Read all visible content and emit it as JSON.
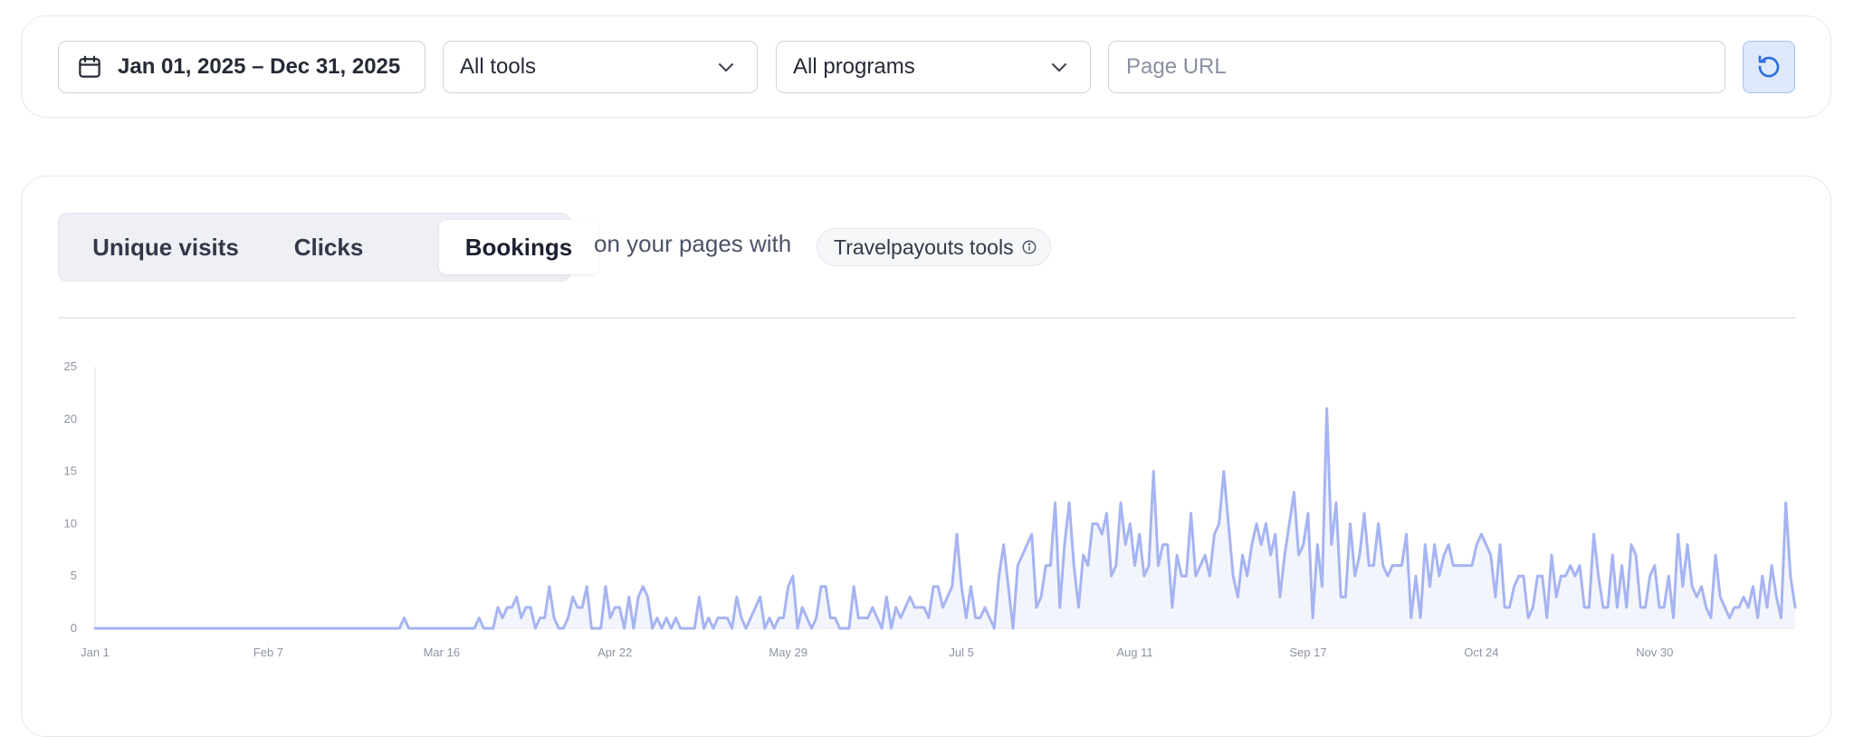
{
  "filters": {
    "date_range": "Jan 01, 2025 – Dec 31, 2025",
    "tools_select": "All tools",
    "programs_select": "All programs",
    "url_placeholder": "Page URL"
  },
  "metric_tabs": [
    "Unique visits",
    "Clicks",
    "Bookings"
  ],
  "selected_tab": "Bookings",
  "caption": "on your pages with",
  "tools_badge": "Travelpayouts tools",
  "colors": {
    "line": "#a6b4f2",
    "area": "#f3f5fc",
    "accent": "#2f6fe0"
  },
  "chart_data": {
    "type": "line",
    "x_start": "Jan 1",
    "xlabel": "",
    "ylabel": "",
    "ylim": [
      0,
      25
    ],
    "yticks": [
      0,
      5,
      10,
      15,
      20,
      25
    ],
    "xticks": [
      "Jan 1",
      "Feb 7",
      "Mar 16",
      "Apr 22",
      "May 29",
      "Jul 5",
      "Aug 11",
      "Sep 17",
      "Oct 24",
      "Nov 30"
    ],
    "xtick_days": [
      0,
      37,
      74,
      111,
      148,
      185,
      222,
      259,
      296,
      333
    ],
    "series": [
      {
        "name": "",
        "values": [
          0,
          0,
          0,
          0,
          0,
          0,
          0,
          0,
          0,
          0,
          0,
          0,
          0,
          0,
          0,
          0,
          0,
          0,
          0,
          0,
          0,
          0,
          0,
          0,
          0,
          0,
          0,
          0,
          0,
          0,
          0,
          0,
          0,
          0,
          0,
          0,
          0,
          0,
          0,
          0,
          0,
          0,
          0,
          0,
          0,
          0,
          0,
          0,
          0,
          0,
          0,
          0,
          0,
          0,
          0,
          0,
          0,
          0,
          0,
          0,
          0,
          0,
          0,
          0,
          0,
          0,
          1,
          0,
          0,
          0,
          0,
          0,
          0,
          0,
          0,
          0,
          0,
          0,
          0,
          0,
          0,
          0,
          1,
          0,
          0,
          0,
          2,
          1,
          2,
          2,
          3,
          1,
          2,
          2,
          0,
          1,
          1,
          4,
          1,
          0,
          0,
          1,
          3,
          2,
          2,
          4,
          0,
          0,
          0,
          4,
          1,
          2,
          2,
          0,
          3,
          0,
          3,
          4,
          3,
          0,
          1,
          0,
          1,
          0,
          1,
          0,
          0,
          0,
          0,
          3,
          0,
          1,
          0,
          1,
          1,
          1,
          0,
          3,
          1,
          0,
          1,
          2,
          3,
          0,
          1,
          0,
          1,
          1,
          4,
          5,
          0,
          2,
          1,
          0,
          1,
          4,
          4,
          1,
          1,
          0,
          0,
          0,
          4,
          1,
          1,
          1,
          2,
          1,
          0,
          3,
          0,
          2,
          1,
          2,
          3,
          2,
          2,
          2,
          1,
          4,
          4,
          2,
          3,
          4,
          9,
          4,
          1,
          4,
          1,
          1,
          2,
          1,
          0,
          5,
          8,
          4,
          0,
          6,
          7,
          8,
          9,
          2,
          3,
          6,
          6,
          12,
          2,
          8,
          12,
          6,
          2,
          7,
          6,
          10,
          10,
          9,
          11,
          5,
          6,
          12,
          8,
          10,
          6,
          9,
          5,
          6,
          15,
          6,
          8,
          8,
          2,
          7,
          5,
          5,
          11,
          5,
          6,
          7,
          5,
          9,
          10,
          15,
          10,
          5,
          3,
          7,
          5,
          8,
          10,
          8,
          10,
          7,
          9,
          3,
          7,
          10,
          13,
          7,
          8,
          11,
          1,
          8,
          4,
          21,
          8,
          12,
          3,
          3,
          10,
          5,
          7,
          11,
          6,
          6,
          10,
          6,
          5,
          6,
          6,
          6,
          9,
          1,
          5,
          1,
          8,
          4,
          8,
          5,
          7,
          8,
          6,
          6,
          6,
          6,
          6,
          8,
          9,
          8,
          7,
          3,
          8,
          2,
          2,
          4,
          5,
          5,
          1,
          2,
          5,
          5,
          1,
          7,
          3,
          5,
          5,
          6,
          5,
          6,
          2,
          2,
          9,
          5,
          2,
          2,
          7,
          2,
          6,
          2,
          8,
          7,
          2,
          2,
          5,
          6,
          2,
          2,
          5,
          1,
          9,
          4,
          8,
          4,
          3,
          4,
          2,
          1,
          7,
          3,
          2,
          1,
          2,
          2,
          3,
          2,
          4,
          1,
          5,
          2,
          6,
          3,
          1,
          12,
          5,
          2
        ]
      }
    ],
    "grid": false,
    "legend": "none"
  }
}
